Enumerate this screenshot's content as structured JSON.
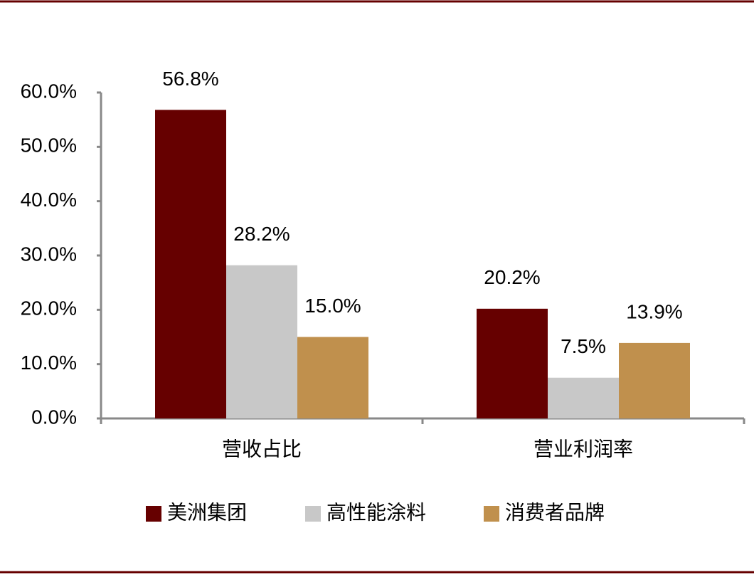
{
  "chart_data": {
    "type": "bar",
    "categories": [
      "营收占比",
      "营业利润率"
    ],
    "series": [
      {
        "name": "美洲集团",
        "color": "#660000",
        "values": [
          56.8,
          20.2
        ],
        "value_labels": [
          "56.8%",
          "20.2%"
        ]
      },
      {
        "name": "高性能涂料",
        "color": "#c8c8c8",
        "values": [
          28.2,
          7.5
        ],
        "value_labels": [
          "28.2%",
          "7.5%"
        ]
      },
      {
        "name": "消费者品牌",
        "color": "#c0904d",
        "values": [
          15.0,
          13.9
        ],
        "value_labels": [
          "15.0%",
          "13.9%"
        ]
      }
    ],
    "ylim": [
      0,
      60
    ],
    "yticks": [
      {
        "value": 0,
        "label": "0.0%"
      },
      {
        "value": 10,
        "label": "10.0%"
      },
      {
        "value": 20,
        "label": "20.0%"
      },
      {
        "value": 30,
        "label": "30.0%"
      },
      {
        "value": 40,
        "label": "40.0%"
      },
      {
        "value": 50,
        "label": "50.0%"
      },
      {
        "value": 60,
        "label": "60.0%"
      }
    ],
    "legend": "bottom"
  }
}
